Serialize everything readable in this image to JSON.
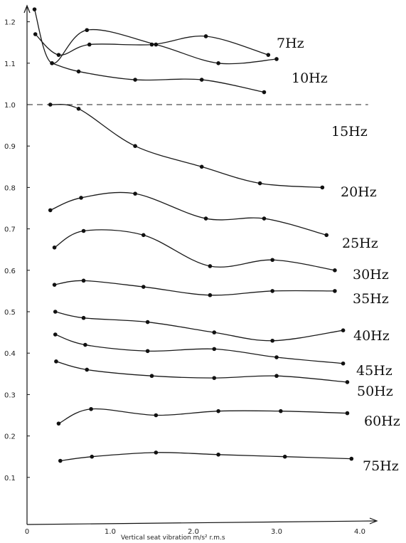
{
  "chart_data": {
    "type": "line",
    "xlabel": "Vertical seat vibration  m/s² r.m.s",
    "xlim": [
      0,
      4.2
    ],
    "ylim": [
      0,
      1.25
    ],
    "x_ticks": [
      "0",
      "1.0",
      "2.0",
      "3.0",
      "4.0"
    ],
    "x_tick_values": [
      0,
      1,
      2,
      3,
      4
    ],
    "y_ticks": [
      "0.1",
      "0.2",
      "0.3",
      "0.4",
      "0.5",
      "0.6",
      "0.7",
      "0.8",
      "0.9",
      "1.0",
      "1.1",
      "1.2"
    ],
    "y_tick_values": [
      0.1,
      0.2,
      0.3,
      0.4,
      0.5,
      0.6,
      0.7,
      0.8,
      0.9,
      1.0,
      1.1,
      1.2
    ],
    "reference_line": {
      "y": 1.0,
      "style": "dashed"
    },
    "grid": false,
    "series": [
      {
        "name": "7Hz",
        "x": [
          0.1,
          0.38,
          0.75,
          1.5,
          2.15,
          2.9
        ],
        "y": [
          1.17,
          1.12,
          1.145,
          1.145,
          1.165,
          1.12
        ]
      },
      {
        "name": "7Hz",
        "x": [
          0.09,
          0.3,
          0.72,
          1.55,
          2.3,
          3.0
        ],
        "y": [
          1.23,
          1.1,
          1.18,
          1.145,
          1.1,
          1.11
        ]
      },
      {
        "name": "10Hz",
        "x": [
          0.3,
          0.62,
          1.3,
          2.1,
          2.85
        ],
        "y": [
          1.1,
          1.08,
          1.06,
          1.06,
          1.03
        ]
      },
      {
        "name": "15Hz",
        "x": [
          0.28,
          0.62,
          1.3,
          2.1,
          2.8,
          3.55
        ],
        "y": [
          1.0,
          0.99,
          0.9,
          0.85,
          0.81,
          0.8
        ]
      },
      {
        "name": "20Hz",
        "x": [
          0.28,
          0.65,
          1.3,
          2.15,
          2.85,
          3.6
        ],
        "y": [
          0.745,
          0.775,
          0.785,
          0.725,
          0.725,
          0.685
        ]
      },
      {
        "name": "25Hz",
        "x": [
          0.33,
          0.68,
          1.4,
          2.2,
          2.95,
          3.7
        ],
        "y": [
          0.655,
          0.695,
          0.685,
          0.61,
          0.625,
          0.6
        ]
      },
      {
        "name": "30Hz",
        "x": [
          0.33,
          0.68,
          1.4,
          2.2,
          2.95,
          3.7
        ],
        "y": [
          0.565,
          0.575,
          0.56,
          0.54,
          0.55,
          0.55
        ]
      },
      {
        "name": "35Hz",
        "x": [
          0.34,
          0.68,
          1.45,
          2.25,
          2.95,
          3.8
        ],
        "y": [
          0.5,
          0.485,
          0.475,
          0.45,
          0.43,
          0.455
        ]
      },
      {
        "name": "40Hz",
        "x": [
          0.34,
          0.7,
          1.45,
          2.25,
          3.0,
          3.8
        ],
        "y": [
          0.445,
          0.42,
          0.405,
          0.41,
          0.39,
          0.375
        ]
      },
      {
        "name": "45Hz",
        "x": [
          0.35,
          0.72,
          1.5,
          2.25,
          3.0,
          3.85
        ],
        "y": [
          0.38,
          0.36,
          0.345,
          0.34,
          0.345,
          0.33
        ]
      },
      {
        "name": "50Hz",
        "x": [
          0.38,
          0.77,
          1.55,
          2.3,
          3.05,
          3.85
        ],
        "y": [
          0.23,
          0.265,
          0.25,
          0.26,
          0.26,
          0.255
        ]
      },
      {
        "name": "60Hz",
        "x": [
          0.4,
          0.78,
          1.55,
          2.3,
          3.1,
          3.9
        ],
        "y": [
          0.14,
          0.15,
          0.16,
          0.155,
          0.15,
          0.145
        ]
      }
    ],
    "series_labels": [
      "7Hz",
      "10Hz",
      "15Hz",
      "20Hz",
      "25Hz",
      "30Hz",
      "35Hz",
      "40Hz",
      "45Hz",
      "50Hz",
      "60Hz",
      "75Hz"
    ]
  }
}
